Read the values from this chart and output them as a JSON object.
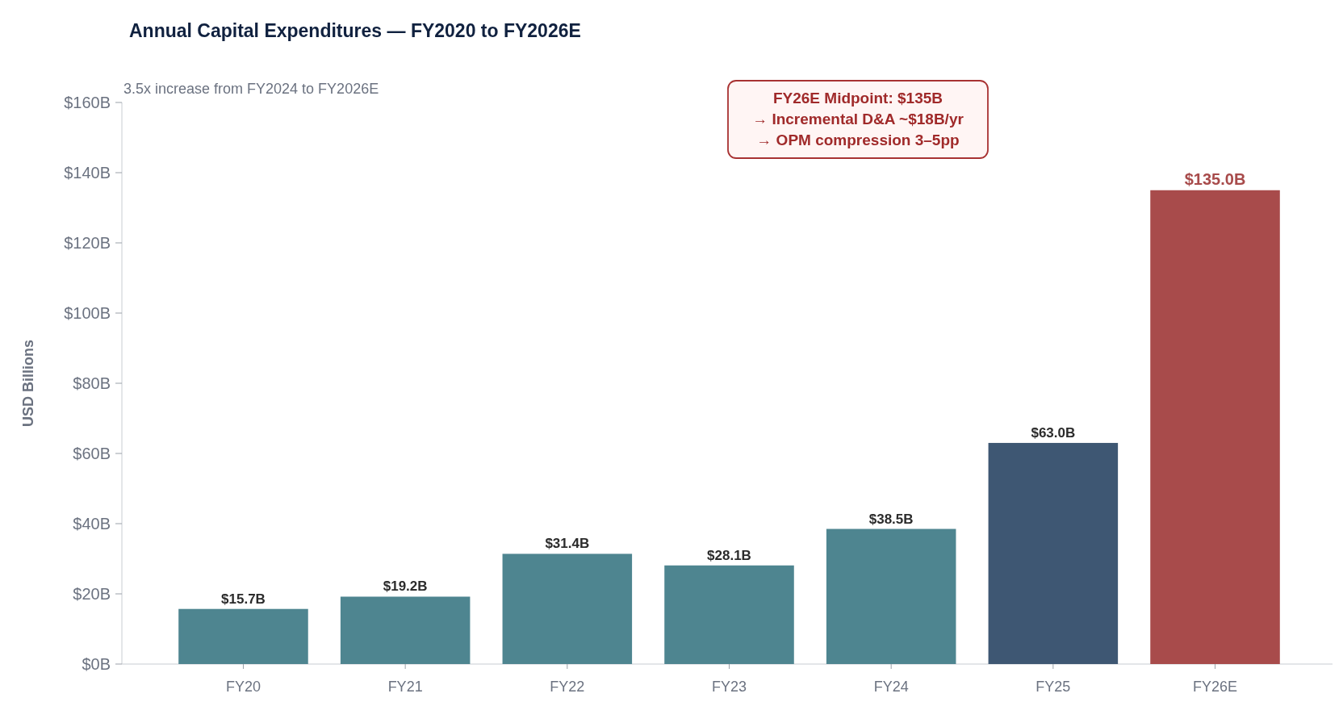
{
  "chart_data": {
    "type": "bar",
    "title": "Annual Capital Expenditures — FY2020 to FY2026E",
    "ylabel": "USD Billions",
    "categories": [
      "FY20",
      "FY21",
      "FY22",
      "FY23",
      "FY24",
      "FY25",
      "FY26E"
    ],
    "values": [
      15.7,
      19.2,
      31.4,
      28.1,
      38.5,
      63.0,
      135.0
    ],
    "colors": [
      "#4e8590",
      "#4e8590",
      "#4e8590",
      "#4e8590",
      "#4e8590",
      "#3e5773",
      "#a84b4b"
    ],
    "value_labels": [
      "$15.7B",
      "$19.2B",
      "$31.4B",
      "$28.1B",
      "$38.5B",
      "$63.0B",
      "$135.0B"
    ],
    "ylim": [
      0,
      160
    ],
    "yticks": [
      {
        "value": 0,
        "label": "$0B"
      },
      {
        "value": 20,
        "label": "$20B"
      },
      {
        "value": 40,
        "label": "$40B"
      },
      {
        "value": 60,
        "label": "$60B"
      },
      {
        "value": 80,
        "label": "$80B"
      },
      {
        "value": 100,
        "label": "$100B"
      },
      {
        "value": 120,
        "label": "$120B"
      },
      {
        "value": 140,
        "label": "$140B"
      },
      {
        "value": 160,
        "label": "$160B"
      }
    ],
    "annotations": [
      "3.5x increase from FY2024 to FY2026E",
      "FY26E Midpoint: $135B\n→ Incremental D&A ~$18B/yr\n→ OPM compression 3–5pp"
    ],
    "grid": false
  }
}
